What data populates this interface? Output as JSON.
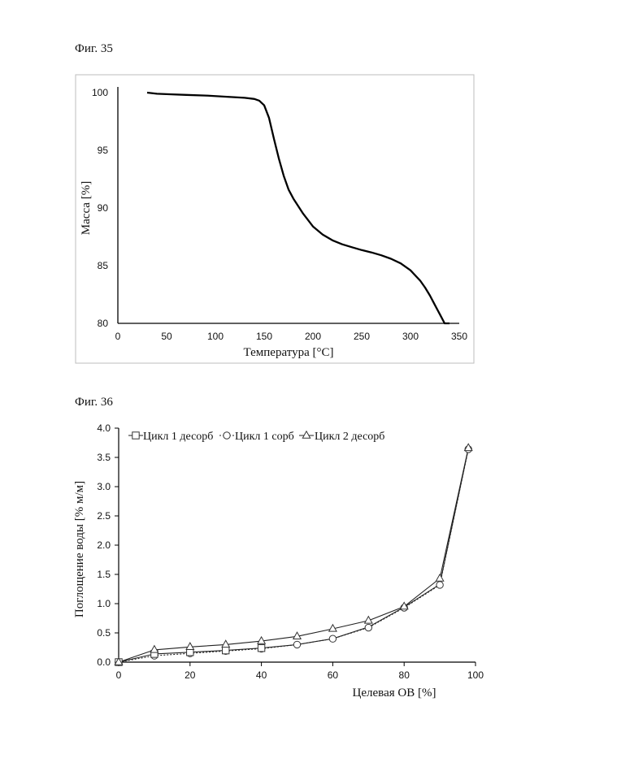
{
  "figures": {
    "fig35_label": "Фиг. 35",
    "fig36_label": "Фиг. 36"
  },
  "chart_data": [
    {
      "type": "line",
      "xlabel": "Температура [°C]",
      "ylabel": "Масса [%]",
      "xlim": [
        0,
        350
      ],
      "ylim": [
        80,
        100
      ],
      "xticks": [
        0,
        50,
        100,
        150,
        200,
        250,
        300,
        350
      ],
      "yticks": [
        80,
        85,
        90,
        95,
        100
      ],
      "grid": false,
      "line_color": "#000000",
      "series": [
        {
          "x": [
            30,
            40,
            55,
            70,
            90,
            110,
            130,
            140,
            145,
            150,
            155,
            160,
            165,
            170,
            175,
            180,
            190,
            200,
            210,
            220,
            230,
            240,
            250,
            260,
            270,
            280,
            290,
            300,
            310,
            315,
            320,
            325,
            330,
            335,
            340
          ],
          "y": [
            100.0,
            99.9,
            99.85,
            99.8,
            99.75,
            99.65,
            99.55,
            99.45,
            99.3,
            98.9,
            97.8,
            96.0,
            94.3,
            92.8,
            91.6,
            90.8,
            89.5,
            88.4,
            87.7,
            87.2,
            86.85,
            86.6,
            86.35,
            86.15,
            85.9,
            85.6,
            85.2,
            84.6,
            83.7,
            83.1,
            82.4,
            81.6,
            80.8,
            80.0,
            79.95
          ]
        }
      ]
    },
    {
      "type": "line",
      "xlabel": "Целевая ОВ [%]",
      "ylabel": "Поглощение воды [% м/м]",
      "xlim": [
        0,
        100
      ],
      "ylim": [
        0,
        4.0
      ],
      "xticks": [
        0,
        20,
        40,
        60,
        80,
        100
      ],
      "yticks": [
        0.0,
        0.5,
        1.0,
        1.5,
        2.0,
        2.5,
        3.0,
        3.5,
        4.0
      ],
      "ytick_labels": [
        "0.0",
        "0.5",
        "1.0",
        "1.5",
        "2.0",
        "2.5",
        "3.0",
        "3.5",
        "4.0"
      ],
      "grid": false,
      "legend_position": "top-left",
      "series": [
        {
          "name": "Цикл 1 десорб",
          "marker": "square",
          "dash": "solid",
          "x": [
            0,
            10,
            20,
            30,
            40,
            50,
            60,
            70,
            80,
            90,
            98
          ],
          "y": [
            0.0,
            0.14,
            0.17,
            0.2,
            0.24,
            0.3,
            0.4,
            0.6,
            0.94,
            1.33,
            3.65
          ],
          "markers_x": [
            0,
            10,
            20,
            30,
            40
          ],
          "markers_y": [
            0.0,
            0.14,
            0.17,
            0.2,
            0.24
          ]
        },
        {
          "name": "Цикл 1 сорб",
          "marker": "circle",
          "dash": "dotted",
          "x": [
            0,
            10,
            20,
            30,
            40,
            50,
            60,
            70,
            80,
            90,
            98
          ],
          "y": [
            0.0,
            0.11,
            0.15,
            0.19,
            0.23,
            0.3,
            0.4,
            0.59,
            0.93,
            1.32,
            3.64
          ],
          "markers_x": [
            0,
            10,
            20,
            30,
            40,
            50,
            60,
            70,
            80,
            90,
            98
          ],
          "markers_y": [
            0.0,
            0.11,
            0.15,
            0.19,
            0.23,
            0.3,
            0.4,
            0.59,
            0.93,
            1.32,
            3.64
          ]
        },
        {
          "name": "Цикл 2 десорб",
          "marker": "triangle",
          "dash": "solid",
          "x": [
            0,
            10,
            20,
            30,
            40,
            50,
            60,
            70,
            80,
            90,
            98
          ],
          "y": [
            0.0,
            0.21,
            0.26,
            0.3,
            0.36,
            0.44,
            0.57,
            0.71,
            0.95,
            1.43,
            3.66
          ],
          "markers_x": [
            0,
            10,
            20,
            30,
            40,
            50,
            60,
            70,
            80,
            90,
            98
          ],
          "markers_y": [
            0.0,
            0.21,
            0.26,
            0.3,
            0.36,
            0.44,
            0.57,
            0.71,
            0.95,
            1.43,
            3.66
          ]
        }
      ]
    }
  ]
}
